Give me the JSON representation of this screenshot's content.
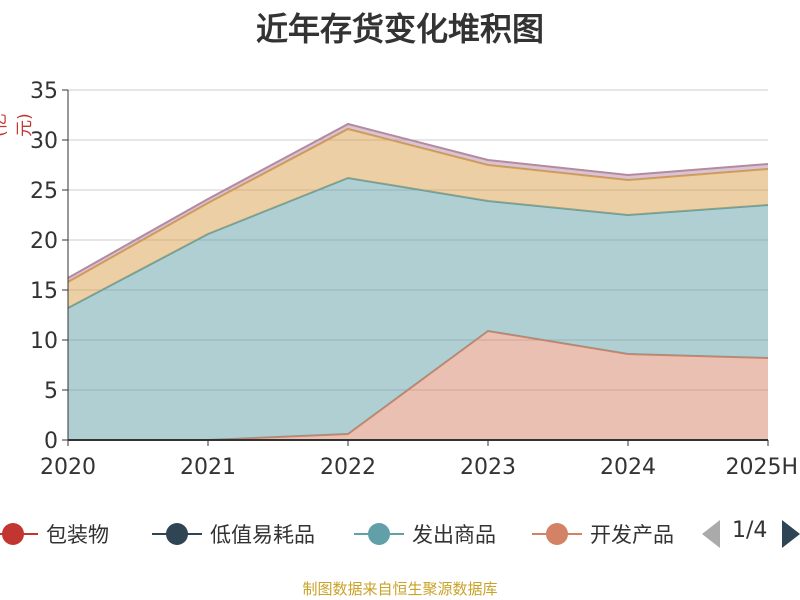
{
  "chart_data": {
    "type": "area",
    "title": "近年存货变化堆积图",
    "ylabel": "(亿元)",
    "xlabel": "",
    "categories": [
      "2020",
      "2021",
      "2022",
      "2023",
      "2024",
      "2025H"
    ],
    "ylim": [
      0,
      35
    ],
    "yticks": [
      0,
      5,
      10,
      15,
      20,
      25,
      30,
      35
    ],
    "grid": true,
    "stacked": true,
    "series": [
      {
        "name": "开发产品",
        "color": "#d48265",
        "values": [
          0,
          0,
          0.6,
          10.9,
          8.6,
          8.2
        ]
      },
      {
        "name": "发出商品",
        "color": "#61a0a8",
        "values": [
          13.2,
          20.6,
          25.6,
          13.0,
          13.9,
          15.3
        ]
      },
      {
        "name": "",
        "color": "#d9a04a",
        "values": [
          2.6,
          3.1,
          4.9,
          3.6,
          3.5,
          3.6
        ]
      },
      {
        "name": "",
        "color": "#b48aa0",
        "values": [
          0.4,
          0.4,
          0.5,
          0.5,
          0.5,
          0.5
        ]
      }
    ]
  },
  "legend": {
    "items": [
      {
        "label": "包装物",
        "color": "#c23531"
      },
      {
        "label": "低值易耗品",
        "color": "#2f4554"
      },
      {
        "label": "发出商品",
        "color": "#61a0a8"
      },
      {
        "label": "开发产品",
        "color": "#d48265"
      }
    ],
    "page_text": "1/4"
  },
  "source": "制图数据来自恒生聚源数据库"
}
